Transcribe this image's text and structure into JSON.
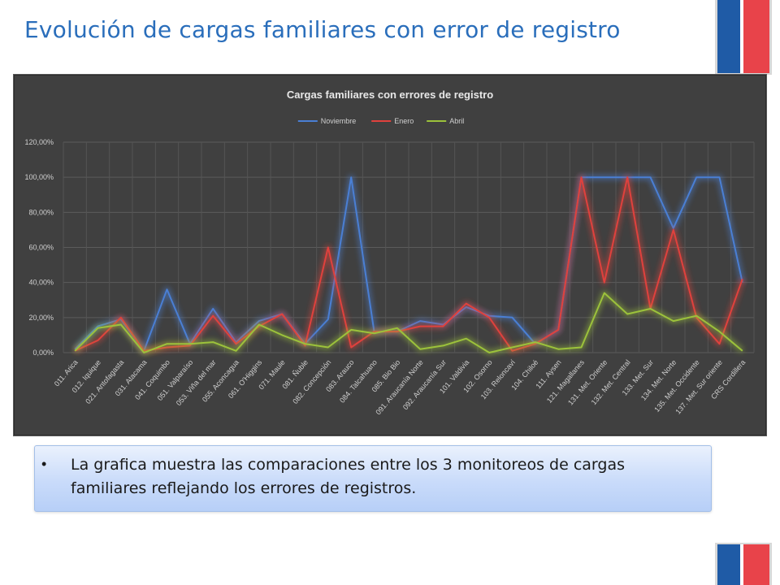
{
  "slide": {
    "title": "Evolución de cargas familiares con error de registro",
    "bullet": "La grafica muestra las comparaciones entre los 3 monitoreos de cargas familiares reflejando los errores de registros."
  },
  "colors": {
    "title": "#2A6EBB",
    "chart_background": "#404040",
    "flag_blue": "#1F5BA6",
    "flag_red": "#E8434A"
  },
  "chart_data": {
    "type": "line",
    "title": "Cargas familiares con errores de registro",
    "xlabel": "",
    "ylabel": "",
    "ylim": [
      0,
      120
    ],
    "yticks": [
      "0,00%",
      "20,00%",
      "40,00%",
      "60,00%",
      "80,00%",
      "100,00%",
      "120,00%"
    ],
    "legend_position": "top",
    "grid": true,
    "categories": [
      "011. Arica",
      "012. Iquique",
      "021. Antofagasta",
      "031. Atacama",
      "041. Coquimbo",
      "051. Valparaíso",
      "053. Viña del mar",
      "055. Aconcagua",
      "061. O'Higgins",
      "071. Maule",
      "081. Ñuble",
      "082. Concepción",
      "083. Arauco",
      "084. Talcahuano",
      "085. Bio Bio",
      "091. Araucanía Norte",
      "092. Araucanía Sur",
      "101. Valdivia",
      "102. Osorno",
      "103. Reloncaví",
      "104. Chiloé",
      "111. Aysen",
      "121. Magallanes",
      "131. Met. Oriente",
      "132. Met. Central",
      "133. Met. Sur",
      "134. Met. Norte",
      "135. Met. Occidente",
      "137. Met. Sur oriente",
      "CRS Cordillera"
    ],
    "series": [
      {
        "name": "Noviembre",
        "color": "#4A7FD4",
        "values": [
          2,
          15,
          19,
          1,
          36,
          5,
          25,
          6,
          18,
          22,
          5,
          19,
          100,
          12,
          12,
          18,
          16,
          26,
          21,
          20,
          5,
          13,
          100,
          100,
          100,
          100,
          71,
          100,
          100,
          40
        ]
      },
      {
        "name": "Enero",
        "color": "#E0413D",
        "values": [
          1,
          7,
          20,
          1,
          3,
          4,
          21,
          5,
          15,
          22,
          4,
          60,
          3,
          12,
          12,
          15,
          15,
          28,
          20,
          1,
          5,
          13,
          100,
          40,
          100,
          25,
          70,
          20,
          5,
          42
        ]
      },
      {
        "name": "Abril",
        "color": "#9CC23B",
        "values": [
          1,
          14,
          16,
          0,
          5,
          5,
          6,
          1,
          16,
          10,
          5,
          3,
          13,
          11,
          14,
          2,
          4,
          8,
          0,
          3,
          6,
          2,
          3,
          34,
          22,
          25,
          18,
          21,
          12,
          1
        ]
      }
    ]
  }
}
